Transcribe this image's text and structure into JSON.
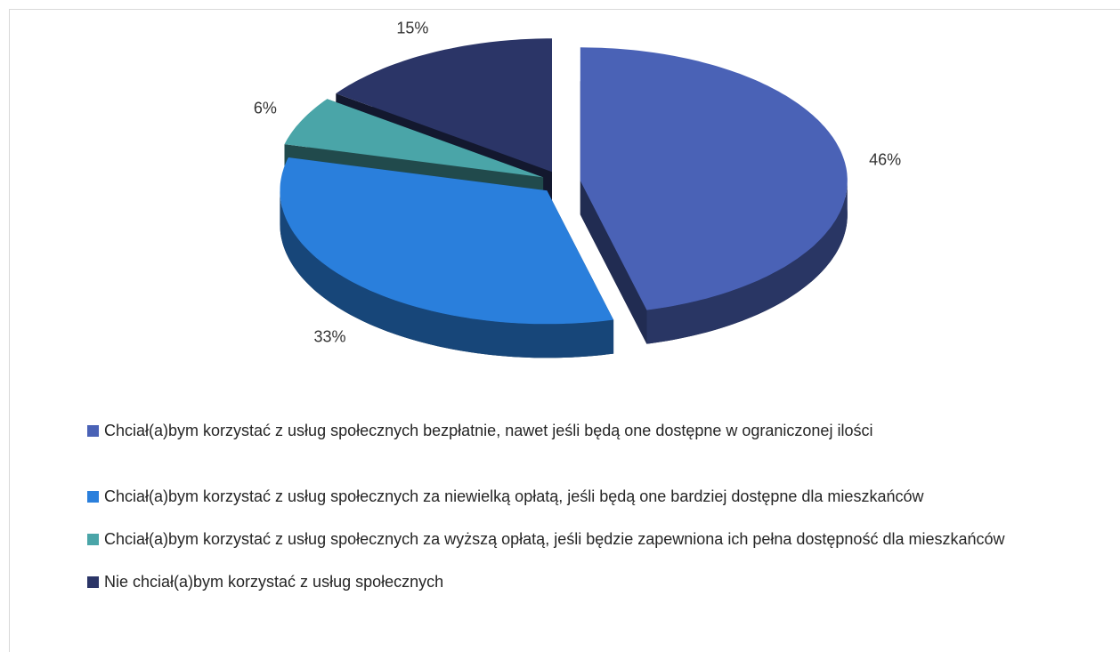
{
  "chart_data": {
    "type": "pie",
    "categories": [
      "Chciał(a)bym korzystać z usług społecznych bezpłatnie, nawet jeśli będą one dostępne w ograniczonej ilości",
      "Chciał(a)bym korzystać z usług społecznych za niewielką opłatą, jeśli będą one bardziej dostępne dla mieszkańców",
      "Chciał(a)bym korzystać z usług społecznych za wyższą opłatą, jeśli będzie zapewniona ich pełna dostępność dla mieszkańców",
      "Nie chciał(a)bym korzystać z usług społecznych"
    ],
    "values": [
      46,
      33,
      6,
      15
    ],
    "value_labels": [
      "46%",
      "33%",
      "6%",
      "15%"
    ],
    "colors": [
      "#4a62b6",
      "#2a7fdc",
      "#4aa5a8",
      "#2b3567"
    ],
    "legend": "bottom"
  }
}
